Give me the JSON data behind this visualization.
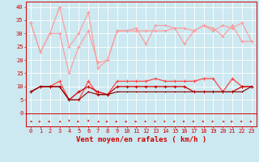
{
  "background_color": "#cce8f0",
  "grid_color": "#ffffff",
  "x_hours": [
    0,
    1,
    2,
    3,
    4,
    5,
    6,
    7,
    8,
    9,
    10,
    11,
    12,
    13,
    14,
    15,
    16,
    17,
    18,
    19,
    20,
    21,
    22,
    23
  ],
  "series": [
    {
      "name": "rafales_max",
      "color": "#ff9999",
      "linewidth": 0.8,
      "marker": "+",
      "markersize": 3,
      "values": [
        34,
        23,
        30,
        40,
        25,
        30,
        38,
        17,
        20,
        31,
        31,
        32,
        26,
        33,
        33,
        32,
        26,
        31,
        33,
        31,
        33,
        32,
        34,
        27
      ]
    },
    {
      "name": "rafales_min",
      "color": "#ff9999",
      "linewidth": 0.8,
      "marker": "+",
      "markersize": 3,
      "values": [
        34,
        23,
        30,
        30,
        15,
        25,
        31,
        19,
        20,
        31,
        31,
        31,
        31,
        31,
        31,
        32,
        32,
        31,
        33,
        32,
        29,
        33,
        27,
        27
      ]
    },
    {
      "name": "vent_max",
      "color": "#ff4444",
      "linewidth": 0.9,
      "marker": "+",
      "markersize": 3,
      "values": [
        8,
        10,
        10,
        12,
        5,
        5,
        12,
        7,
        7,
        12,
        12,
        12,
        12,
        13,
        12,
        12,
        12,
        12,
        13,
        13,
        8,
        13,
        10,
        10
      ]
    },
    {
      "name": "vent_moyen",
      "color": "#cc0000",
      "linewidth": 0.9,
      "marker": "+",
      "markersize": 3,
      "values": [
        8,
        10,
        10,
        10,
        5,
        8,
        10,
        8,
        7,
        10,
        10,
        10,
        10,
        10,
        10,
        10,
        10,
        8,
        8,
        8,
        8,
        8,
        10,
        10
      ]
    },
    {
      "name": "vent_min",
      "color": "#880000",
      "linewidth": 0.8,
      "marker": "+",
      "markersize": 2,
      "values": [
        8,
        10,
        10,
        10,
        5,
        5,
        8,
        7,
        7,
        8,
        8,
        8,
        8,
        8,
        8,
        8,
        8,
        8,
        8,
        8,
        8,
        8,
        8,
        10
      ]
    }
  ],
  "xlabel": "Vent moyen/en rafales ( km/h )",
  "xlabel_color": "#cc0000",
  "xlabel_fontsize": 6.5,
  "ytick_vals": [
    0,
    5,
    10,
    15,
    20,
    25,
    30,
    35,
    40
  ],
  "ytick_labels": [
    "0",
    "5",
    "10",
    "15",
    "20",
    "25",
    "30",
    "35",
    "40"
  ],
  "ylim": [
    -5,
    42
  ],
  "xlim": [
    -0.5,
    23.5
  ],
  "tick_color": "#cc0000",
  "tick_fontsize": 5.0,
  "arrow_directions": [
    45,
    90,
    90,
    135,
    180,
    90,
    180,
    135,
    90,
    90,
    90,
    90,
    315,
    315,
    315,
    315,
    315,
    315,
    315,
    315,
    270,
    90,
    315,
    90
  ]
}
